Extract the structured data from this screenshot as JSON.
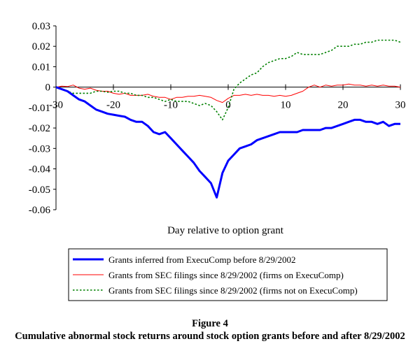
{
  "figure": {
    "number": "Figure 4",
    "caption": "Cumulative abnormal stock returns around stock option grants before and after 8/29/2002"
  },
  "colors": {
    "series1": "#0000ff",
    "series2": "#ff0000",
    "series3": "#008000"
  },
  "chart_data": {
    "type": "line",
    "title": "",
    "xlabel": "Day relative to option grant",
    "ylabel": "",
    "xlim": [
      -30,
      30
    ],
    "ylim": [
      -0.06,
      0.03
    ],
    "xticks": [
      -30,
      -20,
      -10,
      0,
      10,
      20,
      30
    ],
    "xtick_labels": [
      "-30",
      "-20",
      "-10",
      "0",
      "10",
      "20",
      "30"
    ],
    "yticks": [
      0.03,
      0.02,
      0.01,
      0,
      -0.01,
      -0.02,
      -0.03,
      -0.04,
      -0.05,
      -0.06
    ],
    "ytick_labels": [
      "0.03",
      "0.02",
      "0.01",
      "0",
      "-0.01",
      "-0.02",
      "-0.03",
      "-0.04",
      "-0.05",
      "-0.06"
    ],
    "grid": false,
    "legend_position": "bottom",
    "series": [
      {
        "name": "Grants inferred from ExecuComp before 8/29/2002",
        "style": "solid-thick",
        "color": "#0000ff",
        "x": [
          -30,
          -29,
          -28,
          -27,
          -26,
          -25,
          -24,
          -23,
          -22,
          -21,
          -20,
          -19,
          -18,
          -17,
          -16,
          -15,
          -14,
          -13,
          -12,
          -11,
          -10,
          -9,
          -8,
          -7,
          -6,
          -5,
          -4,
          -3,
          -2,
          -1,
          0,
          1,
          2,
          3,
          4,
          5,
          6,
          7,
          8,
          9,
          10,
          11,
          12,
          13,
          14,
          15,
          16,
          17,
          18,
          19,
          20,
          21,
          22,
          23,
          24,
          25,
          26,
          27,
          28,
          29,
          30
        ],
        "y": [
          0,
          -0.001,
          -0.002,
          -0.004,
          -0.006,
          -0.007,
          -0.009,
          -0.011,
          -0.012,
          -0.013,
          -0.0135,
          -0.014,
          -0.0145,
          -0.016,
          -0.017,
          -0.017,
          -0.019,
          -0.022,
          -0.023,
          -0.022,
          -0.025,
          -0.028,
          -0.031,
          -0.034,
          -0.037,
          -0.041,
          -0.044,
          -0.047,
          -0.054,
          -0.042,
          -0.036,
          -0.033,
          -0.03,
          -0.029,
          -0.028,
          -0.026,
          -0.025,
          -0.024,
          -0.023,
          -0.022,
          -0.022,
          -0.022,
          -0.022,
          -0.021,
          -0.021,
          -0.021,
          -0.021,
          -0.02,
          -0.02,
          -0.019,
          -0.018,
          -0.017,
          -0.016,
          -0.016,
          -0.017,
          -0.017,
          -0.018,
          -0.017,
          -0.019,
          -0.018,
          -0.018
        ]
      },
      {
        "name": "Grants from SEC filings since 8/29/2002 (firms on ExecuComp)",
        "style": "solid-thin",
        "color": "#ff0000",
        "x": [
          -30,
          -29,
          -28,
          -27,
          -26,
          -25,
          -24,
          -23,
          -22,
          -21,
          -20,
          -19,
          -18,
          -17,
          -16,
          -15,
          -14,
          -13,
          -12,
          -11,
          -10,
          -9,
          -8,
          -7,
          -6,
          -5,
          -4,
          -3,
          -2,
          -1,
          0,
          1,
          2,
          3,
          4,
          5,
          6,
          7,
          8,
          9,
          10,
          11,
          12,
          13,
          14,
          15,
          16,
          17,
          18,
          19,
          20,
          21,
          22,
          23,
          24,
          25,
          26,
          27,
          28,
          29,
          30
        ],
        "y": [
          0,
          0.0005,
          0.0003,
          0.001,
          -0.0005,
          -0.001,
          -0.0005,
          -0.0015,
          -0.002,
          -0.002,
          -0.003,
          -0.0035,
          -0.003,
          -0.004,
          -0.004,
          -0.004,
          -0.0035,
          -0.0045,
          -0.005,
          -0.005,
          -0.006,
          -0.005,
          -0.005,
          -0.0045,
          -0.0045,
          -0.004,
          -0.0045,
          -0.005,
          -0.0065,
          -0.0075,
          -0.0055,
          -0.004,
          -0.004,
          -0.0035,
          -0.004,
          -0.0035,
          -0.004,
          -0.004,
          -0.0045,
          -0.004,
          -0.0045,
          -0.004,
          -0.003,
          -0.002,
          0,
          0.001,
          0,
          0.001,
          0.0005,
          0.001,
          0.001,
          0.0015,
          0.001,
          0.001,
          0.0005,
          0.001,
          0.0005,
          0.001,
          0.0005,
          0.0005,
          0
        ]
      },
      {
        "name": "Grants from SEC filings since 8/29/2002 (firms not on ExecuComp)",
        "style": "dotted",
        "color": "#008000",
        "x": [
          -30,
          -29,
          -28,
          -27,
          -26,
          -25,
          -24,
          -23,
          -22,
          -21,
          -20,
          -19,
          -18,
          -17,
          -16,
          -15,
          -14,
          -13,
          -12,
          -11,
          -10,
          -9,
          -8,
          -7,
          -6,
          -5,
          -4,
          -3,
          -2,
          -1,
          0,
          1,
          2,
          3,
          4,
          5,
          6,
          7,
          8,
          9,
          10,
          11,
          12,
          13,
          14,
          15,
          16,
          17,
          18,
          19,
          20,
          21,
          22,
          23,
          24,
          25,
          26,
          27,
          28,
          29,
          30
        ],
        "y": [
          0,
          -0.001,
          -0.002,
          -0.003,
          -0.003,
          -0.003,
          -0.003,
          -0.002,
          -0.002,
          -0.0025,
          -0.002,
          -0.002,
          -0.003,
          -0.003,
          -0.004,
          -0.004,
          -0.005,
          -0.005,
          -0.006,
          -0.007,
          -0.006,
          -0.007,
          -0.007,
          -0.007,
          -0.008,
          -0.009,
          -0.008,
          -0.009,
          -0.012,
          -0.016,
          -0.01,
          -0.001,
          0.002,
          0.004,
          0.006,
          0.007,
          0.01,
          0.012,
          0.013,
          0.014,
          0.014,
          0.015,
          0.017,
          0.016,
          0.016,
          0.016,
          0.016,
          0.017,
          0.018,
          0.02,
          0.02,
          0.02,
          0.021,
          0.021,
          0.022,
          0.022,
          0.023,
          0.023,
          0.023,
          0.023,
          0.022
        ]
      }
    ]
  }
}
